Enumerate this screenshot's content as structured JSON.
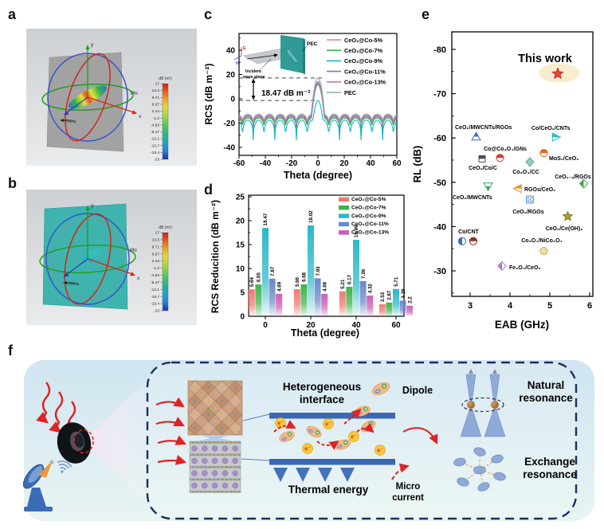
{
  "figure": {
    "panel_labels": {
      "a": "a",
      "b": "b",
      "c": "c",
      "d": "d",
      "e": "e",
      "f": "f"
    }
  },
  "cst": {
    "colorbar_title": "dB (m²)",
    "colorbar_ticks": [
      "17",
      "13.3",
      "9.71",
      "6.07",
      "2.44",
      "-1.2",
      "-4.83",
      "-8.47",
      "-12.1",
      "-15.7",
      "-19.4",
      "-23"
    ],
    "axes": {
      "x": "x",
      "y": "y",
      "z": "z",
      "phi": "Phi",
      "theta": "Theta"
    }
  },
  "chart_data": [
    {
      "id": "c",
      "type": "line",
      "xlabel": "Theta (degree)",
      "ylabel": "RCS (dB m⁻²)",
      "xlim": [
        -60,
        60
      ],
      "ylim": [
        -47,
        54
      ],
      "xticks": [
        -60,
        -40,
        -20,
        0,
        20,
        40,
        60
      ],
      "yticks": [
        -40,
        -20,
        0,
        20,
        40
      ],
      "annotation": "18.47 dB m⁻²",
      "dashed_levels": [
        17.1,
        -1.4
      ],
      "inset": {
        "pec": "PEC",
        "incident1": "Incident",
        "incident2": "wave plane",
        "absorber": "Absorber",
        "e_label": "E",
        "h_label": "H"
      },
      "series": [
        {
          "name": "CeO₂@Co-5%",
          "color": "#ef7b72",
          "peak": 12.2,
          "sl_top": -15.0,
          "sl_bot": -24
        },
        {
          "name": "CeO₂@Co-7%",
          "color": "#3cb44a",
          "peak": 11.7,
          "sl_top": -15.8,
          "sl_bot": -25.5
        },
        {
          "name": "CeO₂@Co-9%",
          "color": "#12b5c9",
          "peak": -1.4,
          "sl_top": -17.5,
          "sl_bot": -34
        },
        {
          "name": "CeO₂@Co-11%",
          "color": "#5e7fca",
          "peak": 13.2,
          "sl_top": -14.2,
          "sl_bot": -23
        },
        {
          "name": "CeO₂@Co-13%",
          "color": "#cc6fb2",
          "peak": 14.3,
          "sl_top": -13.5,
          "sl_bot": -22
        },
        {
          "name": "PEC",
          "color": "#9aa2ac",
          "peak": 17.1,
          "sl_top": -12.6,
          "sl_bot": -21
        }
      ]
    },
    {
      "id": "d",
      "type": "bar",
      "xlabel": "Theta (degree)",
      "ylabel": "RCS Reducition (dB m⁻²)",
      "categories": [
        0,
        20,
        40,
        60
      ],
      "ylim": [
        0,
        25
      ],
      "yticks": [
        0,
        5,
        10,
        15,
        20,
        25
      ],
      "series": [
        {
          "name": "CeO₂@Co-5%",
          "color": "#ef7b72",
          "values": [
            5.64,
            5.66,
            5.21,
            2.53
          ]
        },
        {
          "name": "CeO₂@Co-7%",
          "color": "#3cb44a",
          "values": [
            6.65,
            6.68,
            6.17,
            2.87
          ]
        },
        {
          "name": "CeO₂@Co-9%",
          "color": "#2cb8c8",
          "values": [
            18.47,
            19.02,
            15.99,
            5.71
          ]
        },
        {
          "name": "CeO₂@Co-11%",
          "color": "#6b88c8",
          "values": [
            7.87,
            7.93,
            7.36,
            3.26
          ]
        },
        {
          "name": "CeO₂@Co-13%",
          "color": "#cc5fb4",
          "values": [
            4.69,
            4.68,
            4.32,
            2.2
          ]
        }
      ]
    },
    {
      "id": "e",
      "type": "scatter",
      "xlabel": "EAB (GHz)",
      "ylabel": "RL (dB)",
      "xticks": [
        3,
        4,
        5,
        6
      ],
      "yticks": [
        -80,
        -70,
        -60,
        -50,
        -40,
        -30
      ],
      "points": [
        {
          "label": "This work",
          "x": 5.2,
          "y": -74.5,
          "marker": "star-big",
          "color": "#e8473a"
        },
        {
          "label": "CeO₂/MWCNTs/RGOs",
          "x": 3.15,
          "y": -60.3,
          "marker": "triangle-up-half",
          "color": "#3a6bbf"
        },
        {
          "label": "Co/CeO₂/CNTs",
          "x": 5.15,
          "y": -60.2,
          "marker": "triangle-right-half",
          "color": "#29b7c8"
        },
        {
          "label": "Co@Co₃O₄/GNs",
          "x": 3.75,
          "y": -55.5,
          "marker": "circle-half",
          "color": "#d93a36"
        },
        {
          "label": "CeO₂/Co/C",
          "x": 3.3,
          "y": -55.3,
          "marker": "square-half",
          "color": "#4a4f55"
        },
        {
          "label": "MoS₂/CeO₂",
          "x": 4.85,
          "y": -56.6,
          "marker": "circle-half",
          "color": "#e8641f"
        },
        {
          "label": "Co₃O₄/CC",
          "x": 4.5,
          "y": -54.6,
          "marker": "diamond",
          "color": "#8ecfc0"
        },
        {
          "label": "CeO₂₋ₓ/RGOs",
          "x": 5.85,
          "y": -49.7,
          "marker": "diamond-half",
          "color": "#4ca84e"
        },
        {
          "label": "CeO₂/MWCNTs",
          "x": 3.45,
          "y": -49.1,
          "marker": "triangle-down-half",
          "color": "#3aa85c"
        },
        {
          "label": "RGOs/CeO₂",
          "x": 4.2,
          "y": -48.6,
          "marker": "triangle-left-half",
          "color": "#e09a2f"
        },
        {
          "label": "CeO₂/RGOs",
          "x": 4.5,
          "y": -46.1,
          "marker": "square-hatch",
          "color": "#7aabdc"
        },
        {
          "label": "CeO₂/Ce(OH)₃",
          "x": 5.45,
          "y": -42.3,
          "marker": "star",
          "color": "#b0a030"
        },
        {
          "label": "Co/CNT",
          "x": 2.8,
          "y": -36.7,
          "marker": "circle-halfv",
          "color": "#3a6bbf"
        },
        {
          "label": "",
          "x": 3.08,
          "y": -36.7,
          "marker": "circle-half",
          "color": "#8c2f2a"
        },
        {
          "label": "Co₃O₄/NiCo₂O₄",
          "x": 4.85,
          "y": -34.5,
          "marker": "circle",
          "color": "#f0dda0"
        },
        {
          "label": "Fe₃O₄/CeO₂",
          "x": 3.8,
          "y": -31.1,
          "marker": "diamond-half",
          "color": "#b07cc6"
        }
      ]
    }
  ],
  "panel_f": {
    "heterogeneous1": "Heterogeneous",
    "heterogeneous2": "interface",
    "dipole": "Dipole",
    "thermal": "Thermal energy",
    "micro1": "Micro",
    "micro2": "current",
    "natural1": "Natural",
    "natural2": "resonance",
    "exchange1": "Exchange",
    "exchange2": "resonance",
    "electron": "e⁻"
  }
}
